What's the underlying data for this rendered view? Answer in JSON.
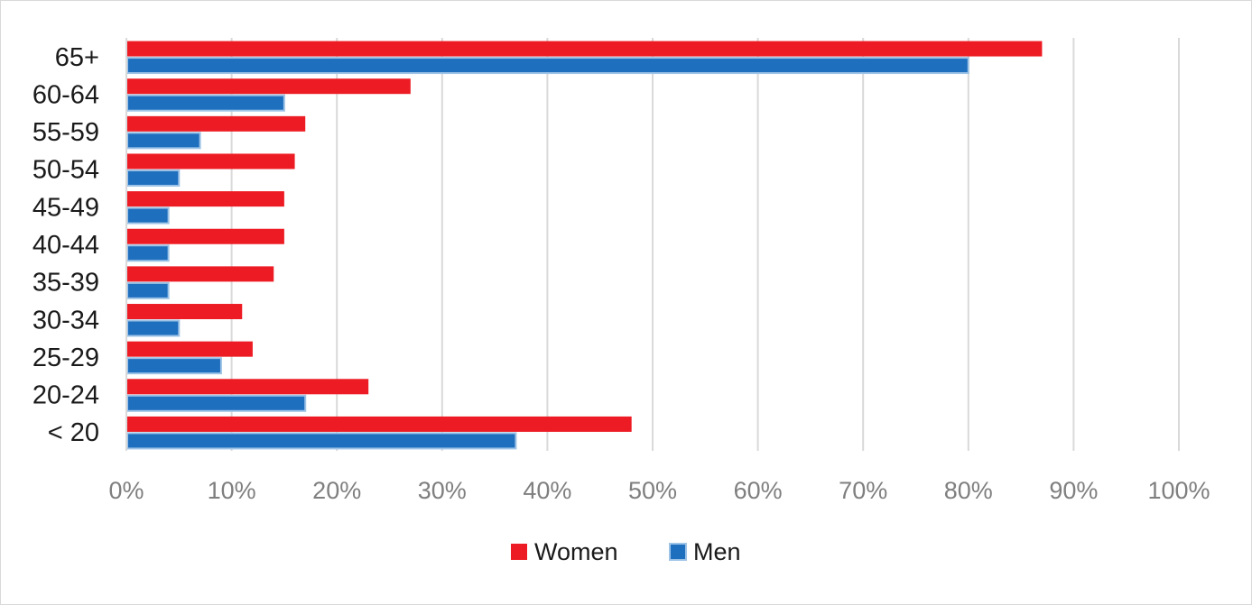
{
  "chart_data": {
    "type": "bar",
    "orientation": "horizontal",
    "categories": [
      "< 20",
      "20-24",
      "25-29",
      "30-34",
      "35-39",
      "40-44",
      "45-49",
      "50-54",
      "55-59",
      "60-64",
      "65+"
    ],
    "series": [
      {
        "name": "Women",
        "color": "#ed1c24",
        "values": [
          48,
          23,
          12,
          11,
          14,
          15,
          15,
          16,
          17,
          27,
          87
        ]
      },
      {
        "name": "Men",
        "color": "#1f6fbf",
        "edge_color": "#9dc3e6",
        "values": [
          37,
          17,
          9,
          5,
          4,
          4,
          4,
          5,
          7,
          15,
          80
        ]
      }
    ],
    "xlim": [
      0,
      100
    ],
    "xticks": [
      "0%",
      "10%",
      "20%",
      "30%",
      "40%",
      "50%",
      "60%",
      "70%",
      "80%",
      "90%",
      "100%"
    ],
    "grid": "vertical",
    "legend": "bottom",
    "title": "",
    "xlabel": "",
    "ylabel": ""
  }
}
